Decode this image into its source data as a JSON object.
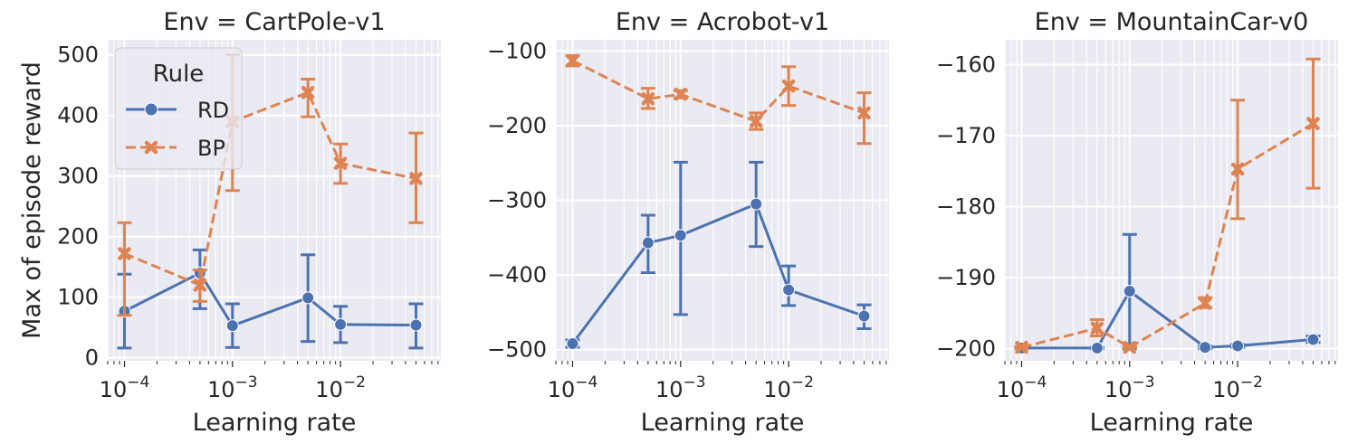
{
  "chart_data": [
    {
      "type": "line",
      "title": "Env = CartPole-v1",
      "xlabel": "Learning rate",
      "ylabel": "Max of episode reward",
      "xscale": "log",
      "xlim": [
        7e-05,
        0.085
      ],
      "ylim": [
        -5,
        525
      ],
      "yticks": [
        0,
        100,
        200,
        300,
        400,
        500
      ],
      "ytick_labels": [
        "0",
        "100",
        "200",
        "300",
        "400",
        "500"
      ],
      "xticks": [
        0.0001,
        0.001,
        0.01
      ],
      "xtick_labels": [
        {
          "base": "10",
          "exp": "−4"
        },
        {
          "base": "10",
          "exp": "−3"
        },
        {
          "base": "10",
          "exp": "−2"
        }
      ],
      "grid": true,
      "legend": "top-left",
      "series": [
        {
          "name": "RD",
          "color": "#4c72b0",
          "marker": "circle",
          "dash": false,
          "x": [
            0.0001,
            0.0005,
            0.001,
            0.005,
            0.01,
            0.05
          ],
          "y": [
            77,
            140,
            53,
            99,
            55,
            54
          ],
          "err_low": [
            16,
            81,
            17,
            27,
            25,
            16
          ],
          "err_high": [
            138,
            178,
            89,
            170,
            85,
            89
          ]
        },
        {
          "name": "BP",
          "color": "#dd8452",
          "marker": "x",
          "dash": true,
          "x": [
            0.0001,
            0.0005,
            0.001,
            0.005,
            0.01,
            0.05
          ],
          "y": [
            172,
            120,
            390,
            438,
            321,
            296
          ],
          "err_low": [
            70,
            93,
            276,
            398,
            288,
            223
          ],
          "err_high": [
            223,
            145,
            500,
            460,
            353,
            371
          ]
        }
      ]
    },
    {
      "type": "line",
      "title": "Env = Acrobot-v1",
      "xlabel": "Learning rate",
      "ylabel": "",
      "xscale": "log",
      "xlim": [
        7e-05,
        0.085
      ],
      "ylim": [
        -515,
        -85
      ],
      "yticks": [
        -500,
        -400,
        -300,
        -200,
        -100
      ],
      "ytick_labels": [
        "−500",
        "−400",
        "−300",
        "−200",
        "−100"
      ],
      "xticks": [
        0.0001,
        0.001,
        0.01
      ],
      "xtick_labels": [
        {
          "base": "10",
          "exp": "−4"
        },
        {
          "base": "10",
          "exp": "−3"
        },
        {
          "base": "10",
          "exp": "−2"
        }
      ],
      "grid": true,
      "legend": "none",
      "series": [
        {
          "name": "RD",
          "color": "#4c72b0",
          "marker": "circle",
          "dash": false,
          "x": [
            0.0001,
            0.0005,
            0.001,
            0.005,
            0.01,
            0.05
          ],
          "y": [
            -492,
            -357,
            -347,
            -305,
            -420,
            -455
          ],
          "err_low": [
            -497,
            -397,
            -453,
            -362,
            -441,
            -472
          ],
          "err_high": [
            -487,
            -320,
            -249,
            -249,
            -388,
            -440
          ]
        },
        {
          "name": "BP",
          "color": "#dd8452",
          "marker": "x",
          "dash": true,
          "x": [
            0.0001,
            0.0005,
            0.001,
            0.005,
            0.01,
            0.05
          ],
          "y": [
            -113,
            -164,
            -158,
            -194,
            -147,
            -183
          ],
          "err_low": [
            -120,
            -177,
            -163,
            -205,
            -173,
            -224
          ],
          "err_high": [
            -106,
            -150,
            -153,
            -183,
            -121,
            -156
          ]
        }
      ]
    },
    {
      "type": "line",
      "title": "Env = MountainCar-v0",
      "xlabel": "Learning rate",
      "ylabel": "",
      "xscale": "log",
      "xlim": [
        7e-05,
        0.085
      ],
      "ylim": [
        -201.7,
        -156.5
      ],
      "yticks": [
        -200,
        -190,
        -180,
        -170,
        -160
      ],
      "ytick_labels": [
        "−200",
        "−190",
        "−180",
        "−170",
        "−160"
      ],
      "xticks": [
        0.0001,
        0.001,
        0.01
      ],
      "xtick_labels": [
        {
          "base": "10",
          "exp": "−4"
        },
        {
          "base": "10",
          "exp": "−3"
        },
        {
          "base": "10",
          "exp": "−2"
        }
      ],
      "grid": true,
      "legend": "none",
      "series": [
        {
          "name": "RD",
          "color": "#4c72b0",
          "marker": "circle",
          "dash": false,
          "x": [
            0.0001,
            0.0005,
            0.001,
            0.005,
            0.01,
            0.05
          ],
          "y": [
            -199.9,
            -199.9,
            -191.9,
            -199.8,
            -199.6,
            -198.7
          ],
          "err_low": [
            -200,
            -200,
            -200,
            -200,
            -199.8,
            -199.1
          ],
          "err_high": [
            -199.8,
            -199.8,
            -183.9,
            -199.6,
            -199.4,
            -198.2
          ]
        },
        {
          "name": "BP",
          "color": "#dd8452",
          "marker": "x",
          "dash": true,
          "x": [
            0.0001,
            0.0005,
            0.001,
            0.005,
            0.01,
            0.05
          ],
          "y": [
            -199.8,
            -197.1,
            -199.8,
            -193.6,
            -174.7,
            -168.3
          ],
          "err_low": [
            -199.9,
            -198.2,
            -199.9,
            -194.2,
            -181.7,
            -177.4
          ],
          "err_high": [
            -199.7,
            -195.9,
            -199.7,
            -192.8,
            -165.0,
            -159.2
          ]
        }
      ]
    }
  ],
  "legend": {
    "title": "Rule",
    "entries": [
      "RD",
      "BP"
    ]
  }
}
